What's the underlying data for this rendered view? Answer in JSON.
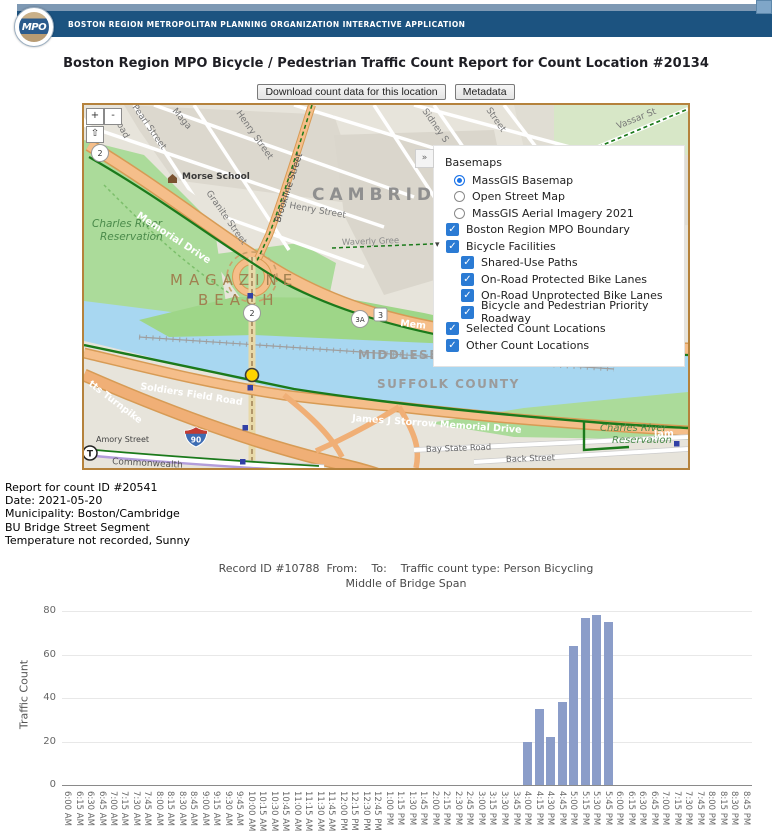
{
  "header": {
    "app_title": "BOSTON REGION METROPOLITAN PLANNING ORGANIZATION INTERACTIVE APPLICATION",
    "logo_text": "MPO"
  },
  "page_title": "Boston Region MPO Bicycle / Pedestrian Traffic Count Report for Count Location #20134",
  "toolbar": {
    "download_label": "Download count data for this location",
    "metadata_label": "Metadata"
  },
  "map": {
    "controls": {
      "zoom_in": "+",
      "zoom_out": "-",
      "home": "⇧",
      "collapse": "»"
    },
    "legend": {
      "heading": "Basemaps",
      "basemap_options": [
        {
          "label": "MassGIS Basemap",
          "selected": true
        },
        {
          "label": "Open Street Map",
          "selected": false
        },
        {
          "label": "MassGIS Aerial Imagery 2021",
          "selected": false
        }
      ],
      "layers": [
        {
          "label": "Boston Region MPO Boundary",
          "checked": true,
          "indent": 0,
          "expander": false
        },
        {
          "label": "Bicycle Facilities",
          "checked": true,
          "indent": 0,
          "expander": true
        },
        {
          "label": "Shared-Use Paths",
          "checked": true,
          "indent": 1,
          "expander": false
        },
        {
          "label": "On-Road Protected Bike Lanes",
          "checked": true,
          "indent": 1,
          "expander": false
        },
        {
          "label": "On-Road Unprotected Bike Lanes",
          "checked": true,
          "indent": 1,
          "expander": false
        },
        {
          "label": "Bicycle and Pedestrian Priority Roadway",
          "checked": true,
          "indent": 1,
          "expander": false
        },
        {
          "label": "Selected Count Locations",
          "checked": true,
          "indent": 0,
          "expander": false
        },
        {
          "label": "Other Count Locations",
          "checked": true,
          "indent": 0,
          "expander": false
        }
      ]
    },
    "labels": {
      "city": "CAMBRIDGE",
      "beach1": "MAGAZINE",
      "beach2": "BEACH",
      "county1": "MIDDLESEX COUNTY",
      "county2": "SUFFOLK COUNTY",
      "resv_l1": "Charles River",
      "resv_l2": "Reservation",
      "resv_r1": "Charles River",
      "resv_r2": "Reservation",
      "morse": "Morse School",
      "memorial": "Memorial Drive",
      "mem_short": "Mem",
      "granite": "Granite Street",
      "henry": "Henry Street",
      "henry2": "Henry Street",
      "pearl": "Pearl Street",
      "road": "Road",
      "maga": "Maga",
      "brookline": "Brookline Street",
      "sidney": "Sidney S",
      "street2": "Street",
      "vassar": "Vassar St",
      "waverly": "Waverly Gree",
      "soldiers": "Soldiers Field Road",
      "turnpike": "tts Turnpike",
      "storrow": "James J Storrow Memorial Drive",
      "baystate": "Bay State Road",
      "back": "Back Street",
      "jam": "Jam",
      "amory": "Amory Street",
      "commonwealth": "Commonwealth"
    },
    "shields": {
      "route2": "2",
      "route2b": "2",
      "route3a": "3A",
      "route3": "3",
      "i90": "90",
      "mbta": "T"
    }
  },
  "report": {
    "lines": [
      "Report for count ID #20541",
      "Date: 2021-05-20",
      "Municipality: Boston/Cambridge",
      "BU Bridge Street Segment",
      "Temperature not recorded, Sunny"
    ]
  },
  "chart_data": {
    "type": "bar",
    "title_line1": "Record ID #10788  From:    To:    Traffic count type: Person Bicycling",
    "title_line2": "Middle of Bridge Span",
    "ylabel": "Traffic Count",
    "ylim": [
      0,
      80
    ],
    "yticks": [
      0,
      20,
      40,
      60,
      80
    ],
    "bar_color": "#8b9dc9",
    "grid": true,
    "legend_position": "none",
    "categories": [
      "6:00 AM",
      "6:15 AM",
      "6:30 AM",
      "6:45 AM",
      "7:00 AM",
      "7:15 AM",
      "7:30 AM",
      "7:45 AM",
      "8:00 AM",
      "8:15 AM",
      "8:30 AM",
      "8:45 AM",
      "9:00 AM",
      "9:15 AM",
      "9:30 AM",
      "9:45 AM",
      "10:00 AM",
      "10:15 AM",
      "10:30 AM",
      "10:45 AM",
      "11:00 AM",
      "11:15 AM",
      "11:30 AM",
      "11:45 AM",
      "12:00 PM",
      "12:15 PM",
      "12:30 PM",
      "12:45 PM",
      "1:00 PM",
      "1:15 PM",
      "1:30 PM",
      "1:45 PM",
      "2:00 PM",
      "2:15 PM",
      "2:30 PM",
      "2:45 PM",
      "3:00 PM",
      "3:15 PM",
      "3:30 PM",
      "3:45 PM",
      "4:00 PM",
      "4:15 PM",
      "4:30 PM",
      "4:45 PM",
      "5:00 PM",
      "5:15 PM",
      "5:30 PM",
      "5:45 PM",
      "6:00 PM",
      "6:15 PM",
      "6:30 PM",
      "6:45 PM",
      "7:00 PM",
      "7:15 PM",
      "7:30 PM",
      "7:45 PM",
      "8:00 PM",
      "8:15 PM",
      "8:30 PM",
      "8:45 PM"
    ],
    "values": [
      0,
      0,
      0,
      0,
      0,
      0,
      0,
      0,
      0,
      0,
      0,
      0,
      0,
      0,
      0,
      0,
      0,
      0,
      0,
      0,
      0,
      0,
      0,
      0,
      0,
      0,
      0,
      0,
      0,
      0,
      0,
      0,
      0,
      0,
      0,
      0,
      0,
      0,
      0,
      0,
      20,
      35,
      22,
      38,
      64,
      77,
      78,
      75,
      0,
      0,
      0,
      0,
      0,
      0,
      0,
      0,
      0,
      0,
      0,
      0
    ]
  }
}
